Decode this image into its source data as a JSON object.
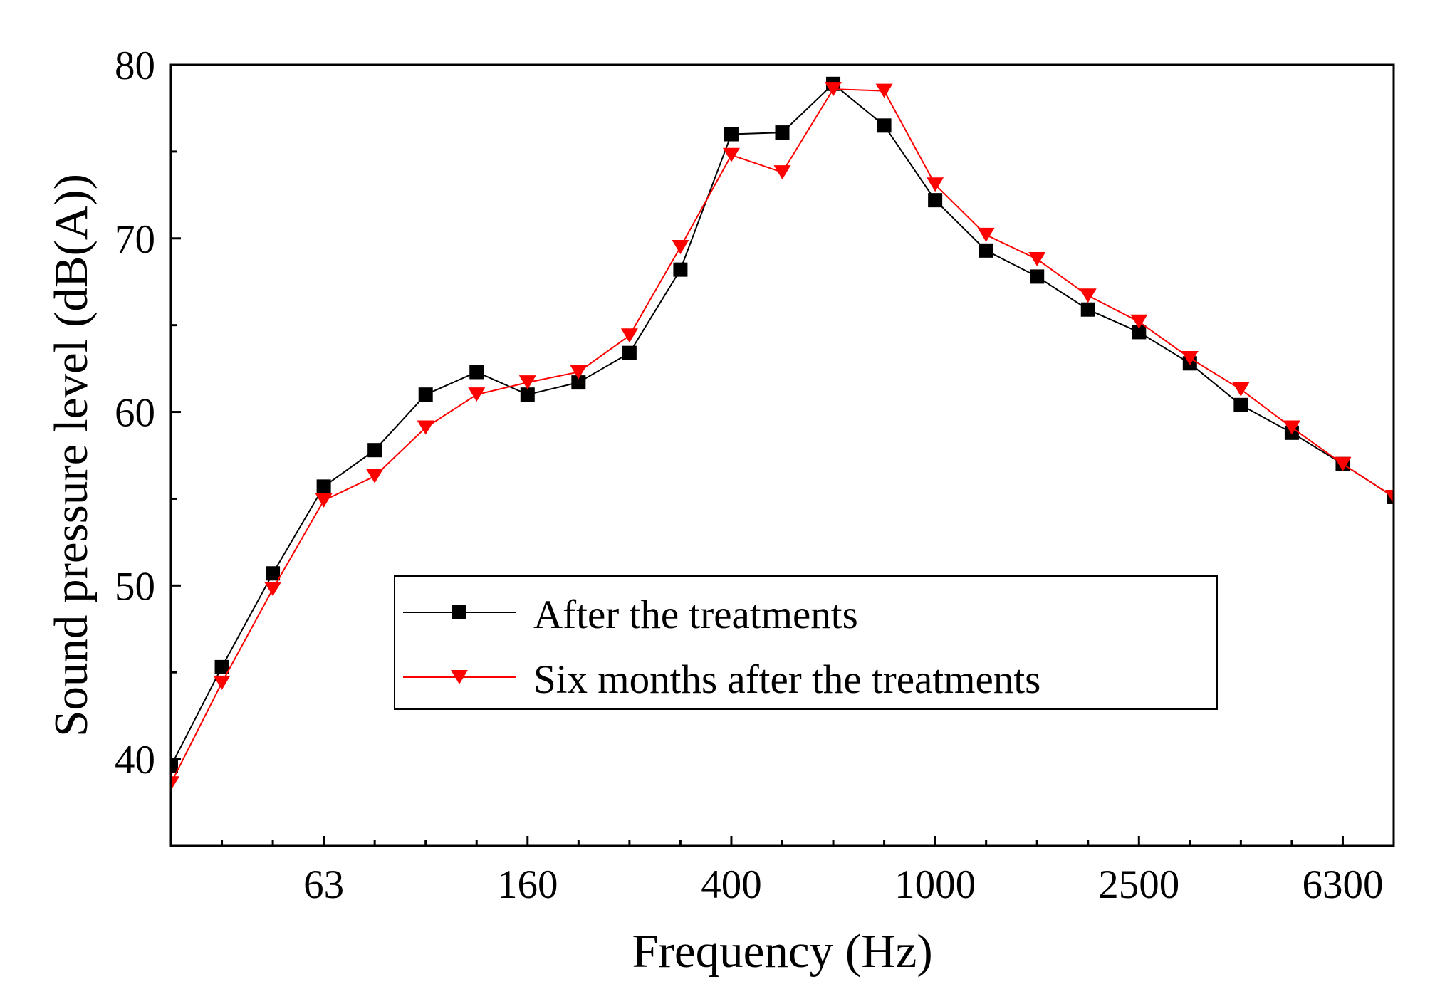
{
  "chart_data": {
    "type": "line",
    "title": "",
    "xlabel": "Frequency (Hz)",
    "ylabel": "Sound pressure level (dB(A))",
    "x_scale": "one-third-octave bands (evenly spaced)",
    "band_count": 25,
    "x_ticks": [
      {
        "label": "63",
        "band_index": 3
      },
      {
        "label": "160",
        "band_index": 7
      },
      {
        "label": "400",
        "band_index": 11
      },
      {
        "label": "1000",
        "band_index": 15
      },
      {
        "label": "2500",
        "band_index": 19
      },
      {
        "label": "6300",
        "band_index": 23
      }
    ],
    "ylim": [
      35,
      80
    ],
    "y_ticks": [
      40,
      50,
      60,
      70,
      80
    ],
    "y_tick_labels": [
      "40",
      "50",
      "60",
      "70",
      "80"
    ],
    "y_minor_step": 5,
    "grid": false,
    "legend_position": "center-bottom",
    "series": [
      {
        "name": "After the treatments",
        "color": "#000000",
        "marker": "square",
        "values": [
          39.6,
          45.3,
          50.7,
          55.7,
          57.8,
          61.0,
          62.3,
          61.0,
          61.7,
          63.4,
          68.2,
          76.0,
          76.1,
          78.9,
          76.5,
          72.2,
          69.3,
          67.8,
          65.9,
          64.6,
          62.8,
          60.4,
          58.8,
          57.0,
          55.1
        ]
      },
      {
        "name": "Six months after the treatments",
        "color": "#ff0000",
        "marker": "triangle-down",
        "values": [
          38.6,
          44.4,
          49.8,
          54.9,
          56.3,
          59.1,
          61.0,
          61.7,
          62.3,
          64.4,
          69.5,
          74.8,
          73.8,
          78.6,
          78.5,
          73.1,
          70.2,
          68.8,
          66.7,
          65.2,
          63.1,
          61.3,
          59.1,
          57.0,
          55.1
        ]
      }
    ]
  }
}
